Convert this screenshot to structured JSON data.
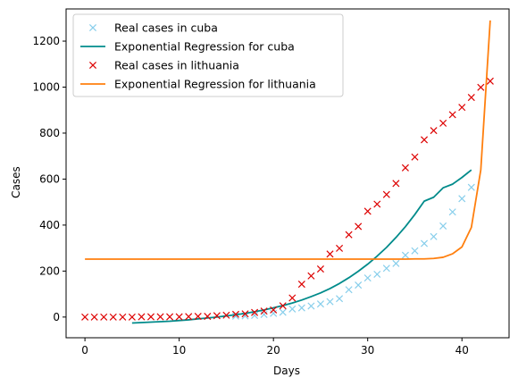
{
  "chart_data": {
    "type": "scatter",
    "title": "",
    "xlabel": "Days",
    "ylabel": "Cases",
    "xlim": [
      -2,
      45
    ],
    "ylim": [
      -90,
      1340
    ],
    "xticks": [
      0,
      10,
      20,
      30,
      40
    ],
    "yticks": [
      0,
      200,
      400,
      600,
      800,
      1000,
      1200
    ],
    "grid": false,
    "legend_position": "top-left",
    "series": [
      {
        "name": "Real cases in cuba",
        "kind": "markers",
        "marker": "x",
        "color": "#87ceeb",
        "x": [
          16,
          17,
          18,
          19,
          20,
          21,
          22,
          23,
          24,
          25,
          26,
          27,
          28,
          29,
          30,
          31,
          32,
          33,
          34,
          35,
          36,
          37,
          38,
          39,
          40,
          41
        ],
        "y": [
          4,
          5,
          7,
          11,
          16,
          21,
          35,
          40,
          48,
          57,
          67,
          80,
          119,
          139,
          170,
          186,
          212,
          233,
          269,
          288,
          320,
          350,
          396,
          457,
          515,
          564
        ]
      },
      {
        "name": "Exponential Regression for cuba",
        "kind": "line",
        "color": "#008b8b",
        "x": [
          5,
          6,
          7,
          8,
          9,
          10,
          11,
          12,
          13,
          14,
          15,
          16,
          17,
          18,
          19,
          20,
          21,
          22,
          23,
          24,
          25,
          26,
          27,
          28,
          29,
          30,
          31,
          32,
          33,
          34,
          35,
          36,
          37,
          38,
          39,
          40,
          41
        ],
        "y": [
          -26,
          -24,
          -22,
          -20,
          -18,
          -15,
          -12,
          -8,
          -4,
          0,
          5,
          10,
          16,
          23,
          31,
          40,
          50,
          61,
          74,
          89,
          105,
          124,
          146,
          171,
          199,
          230,
          265,
          303,
          346,
          393,
          446,
          504,
          521,
          562,
          578,
          607,
          640
        ]
      },
      {
        "name": "Real cases in lithuania",
        "kind": "markers",
        "marker": "x",
        "color": "#dd0000",
        "x": [
          0,
          1,
          2,
          3,
          4,
          5,
          6,
          7,
          8,
          9,
          10,
          11,
          12,
          13,
          14,
          15,
          16,
          17,
          18,
          19,
          20,
          21,
          22,
          23,
          24,
          25,
          26,
          27,
          28,
          29,
          30,
          31,
          32,
          33,
          34,
          35,
          36,
          37,
          38,
          39,
          40,
          41,
          42,
          43
        ],
        "y": [
          0,
          0,
          0,
          0,
          0,
          0,
          1,
          1,
          1,
          1,
          1,
          2,
          3,
          3,
          6,
          8,
          12,
          14,
          20,
          26,
          31,
          49,
          83,
          143,
          179,
          209,
          274,
          299,
          358,
          394,
          460,
          491,
          533,
          581,
          649,
          696,
          771,
          811,
          843,
          880,
          912,
          955,
          999,
          1026
        ]
      },
      {
        "name": "Exponential Regression for lithuania",
        "kind": "line",
        "color": "#ff7f0e",
        "x": [
          0,
          5,
          10,
          15,
          20,
          25,
          30,
          32,
          34,
          35,
          36,
          37,
          38,
          39,
          40,
          41,
          42,
          43
        ],
        "y": [
          252,
          252,
          252,
          252,
          252,
          252,
          252,
          252,
          252,
          253,
          253,
          255,
          260,
          275,
          305,
          390,
          640,
          1290
        ]
      }
    ]
  }
}
